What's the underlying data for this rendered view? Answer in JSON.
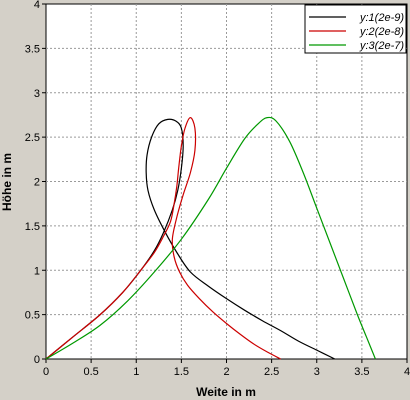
{
  "chart_data": {
    "type": "line",
    "xlabel": "Weite in m",
    "ylabel": "Höhe in m",
    "xlim": [
      0,
      4
    ],
    "ylim": [
      0,
      4
    ],
    "xticks": [
      "0",
      "0.5",
      "1",
      "1.5",
      "2",
      "2.5",
      "3",
      "3.5",
      "4"
    ],
    "yticks": [
      "0",
      "0.5",
      "1",
      "1.5",
      "2",
      "2.5",
      "3",
      "3.5",
      "4"
    ],
    "grid": true,
    "legend_position": "top-right",
    "colors": {
      "background": "#d4d0c8",
      "plot_area": "#ffffff",
      "grid": "#9a9a9a"
    },
    "series": [
      {
        "name": "y:1(2e-9)",
        "color": "#000000",
        "x": [
          0,
          0.3,
          0.6,
          0.85,
          1.05,
          1.2,
          1.3,
          1.4,
          1.46,
          1.5,
          1.52,
          1.5,
          1.44,
          1.35,
          1.25,
          1.17,
          1.12,
          1.11,
          1.13,
          1.2,
          1.32,
          1.45,
          1.6,
          1.8,
          2.0,
          2.2,
          2.4,
          2.6,
          2.8,
          3.0,
          3.2
        ],
        "y": [
          0,
          0.25,
          0.5,
          0.75,
          1.0,
          1.22,
          1.42,
          1.68,
          1.9,
          2.15,
          2.4,
          2.6,
          2.68,
          2.7,
          2.65,
          2.5,
          2.3,
          2.1,
          1.9,
          1.68,
          1.43,
          1.2,
          0.98,
          0.82,
          0.68,
          0.55,
          0.43,
          0.32,
          0.2,
          0.1,
          0
        ]
      },
      {
        "name": "y:2(2e-8)",
        "color": "#cc0000",
        "x": [
          0,
          0.3,
          0.6,
          0.85,
          1.05,
          1.2,
          1.3,
          1.38,
          1.42,
          1.45,
          1.47,
          1.5,
          1.54,
          1.6,
          1.65,
          1.65,
          1.6,
          1.52,
          1.45,
          1.4,
          1.42,
          1.48,
          1.57,
          1.7,
          1.85,
          2.0,
          2.15,
          2.3,
          2.45,
          2.6
        ],
        "y": [
          0,
          0.25,
          0.5,
          0.75,
          1.0,
          1.2,
          1.38,
          1.55,
          1.75,
          1.95,
          2.15,
          2.4,
          2.6,
          2.72,
          2.6,
          2.35,
          2.1,
          1.85,
          1.6,
          1.35,
          1.15,
          0.98,
          0.83,
          0.68,
          0.53,
          0.4,
          0.28,
          0.17,
          0.08,
          0
        ]
      },
      {
        "name": "y:3(2e-7)",
        "color": "#009900",
        "x": [
          0,
          0.3,
          0.6,
          0.9,
          1.2,
          1.5,
          1.8,
          2.0,
          2.2,
          2.35,
          2.45,
          2.55,
          2.7,
          2.85,
          3.0,
          3.15,
          3.3,
          3.45,
          3.55,
          3.65
        ],
        "y": [
          0,
          0.18,
          0.38,
          0.65,
          0.98,
          1.35,
          1.8,
          2.15,
          2.48,
          2.65,
          2.72,
          2.68,
          2.45,
          2.1,
          1.7,
          1.3,
          0.9,
          0.5,
          0.25,
          0
        ]
      }
    ]
  }
}
